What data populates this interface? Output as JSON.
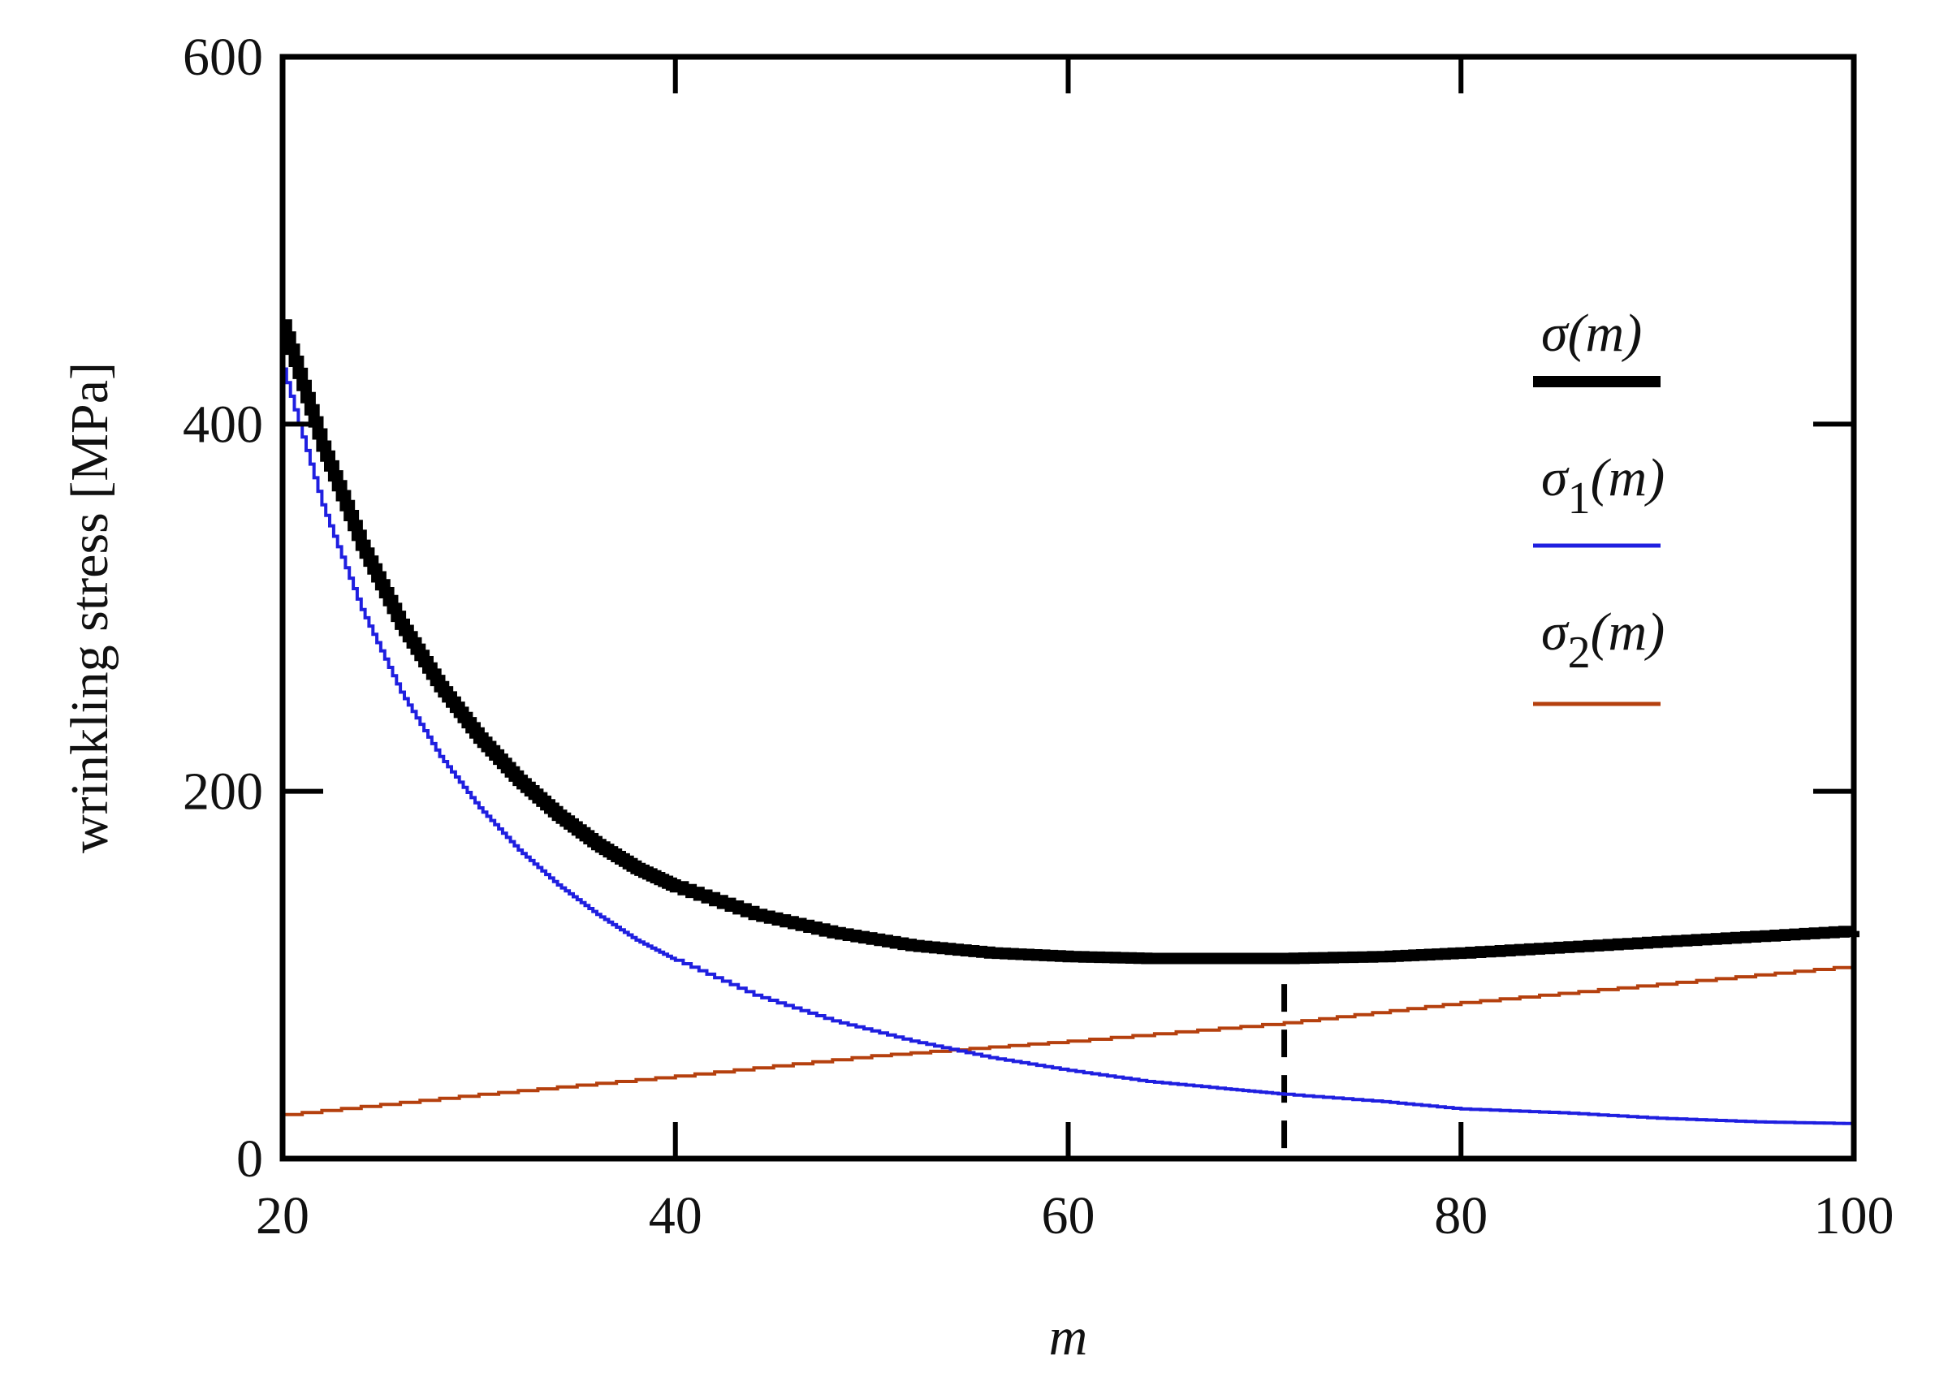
{
  "chart_data": {
    "type": "line",
    "xlabel": "m",
    "ylabel": "wrinkling stress [MPa]",
    "xlim": [
      20,
      100
    ],
    "ylim": [
      0,
      600
    ],
    "xticks": [
      20,
      40,
      60,
      80,
      100
    ],
    "yticks": [
      0,
      200,
      400,
      600
    ],
    "grid": false,
    "legend_position": "right",
    "marker_line": {
      "x": 71,
      "y_top": 95,
      "style": "dashed",
      "color": "#000000"
    },
    "series": [
      {
        "name": "σ(m)",
        "color": "#000000",
        "x": [
          20,
          22,
          24,
          26,
          28,
          30,
          32,
          34,
          36,
          38,
          40,
          44,
          48,
          52,
          56,
          60,
          64,
          68,
          71,
          76,
          80,
          85,
          90,
          95,
          100
        ],
        "y": [
          454,
          388,
          334,
          291,
          257,
          229,
          206,
          187,
          171,
          158,
          148,
          133,
          123,
          116,
          112,
          110,
          109,
          109,
          109,
          110,
          112,
          115,
          118,
          121,
          124
        ]
      },
      {
        "name": "σ1(m)",
        "color": "#1f1fe0",
        "x": [
          20,
          22,
          24,
          26,
          28,
          30,
          32,
          34,
          36,
          38,
          40,
          44,
          48,
          52,
          56,
          60,
          64,
          68,
          71,
          76,
          80,
          85,
          90,
          95,
          100
        ],
        "y": [
          430,
          356,
          299,
          254,
          219,
          191,
          168,
          149,
          133,
          119,
          108,
          89,
          75,
          64,
          55,
          48,
          42,
          38,
          35,
          31,
          27,
          25,
          22,
          20,
          19
        ]
      },
      {
        "name": "σ2(m)",
        "color": "#b5400e",
        "x": [
          20,
          30,
          40,
          50,
          60,
          71,
          80,
          90,
          100
        ],
        "y": [
          24,
          35,
          45,
          56,
          64,
          74,
          85,
          95,
          105
        ]
      }
    ]
  }
}
